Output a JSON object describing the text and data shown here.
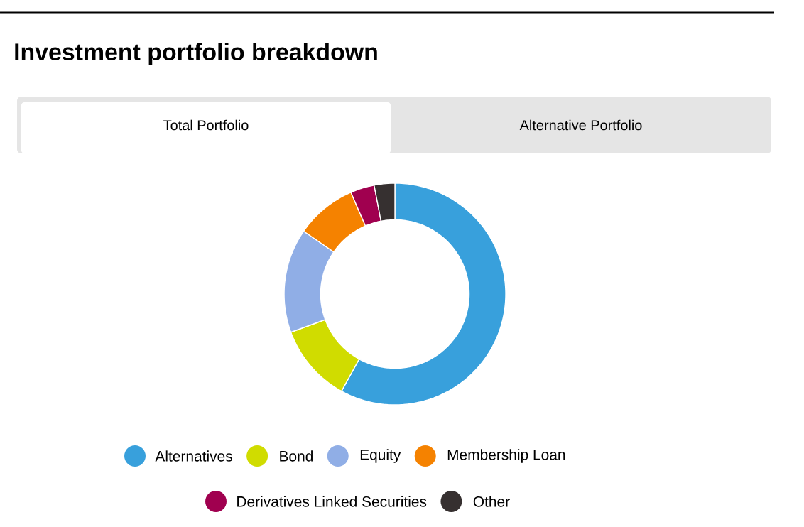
{
  "chart_data": {
    "type": "donut",
    "title": "Investment portfolio breakdown",
    "annotations": [
      "Total Portfolio",
      "Alternative Portfolio"
    ],
    "categories": [
      "Alternatives",
      "Bond",
      "Equity",
      "Membership Loan",
      "Derivatives Linked Securities",
      "Other"
    ],
    "values": [
      58.0,
      11.4,
      15.2,
      8.9,
      3.5,
      3.0
    ],
    "colors": [
      "#38a0dc",
      "#d0dc00",
      "#90aee6",
      "#f58200",
      "#a0004f",
      "#363030"
    ],
    "legend": "bottom"
  }
}
